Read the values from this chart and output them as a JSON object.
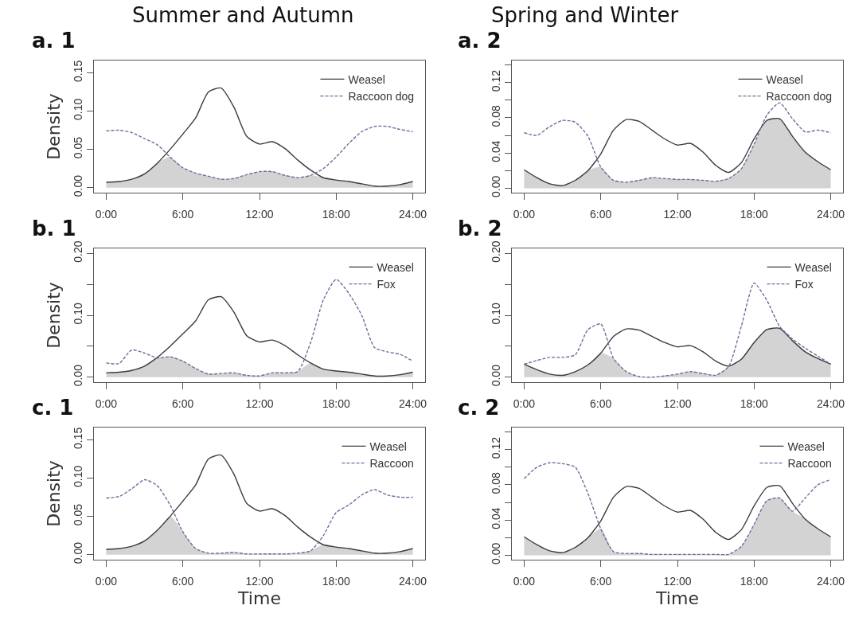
{
  "chart_data": [
    {
      "type": "line",
      "title": "Summer and Autumn",
      "subtitle": "a. 1",
      "ylabel": "Density",
      "x": [
        0,
        1,
        2,
        3,
        4,
        5,
        6,
        7,
        8,
        9,
        10,
        11,
        12,
        13,
        14,
        15,
        16,
        17,
        18,
        19,
        20,
        21,
        22,
        23,
        24
      ],
      "xlim": [
        -0.96,
        24.96
      ],
      "xticks": [
        {
          "value": 0,
          "label": "0:00"
        },
        {
          "value": 6,
          "label": "6:00"
        },
        {
          "value": 12,
          "label": "12:00"
        },
        {
          "value": 18,
          "label": "18:00"
        },
        {
          "value": 24,
          "label": "24:00"
        }
      ],
      "ylim": [
        -0.0065,
        0.166
      ],
      "yticks": [
        {
          "value": 0,
          "label": "0.00"
        },
        {
          "value": 0.05,
          "label": "0.05"
        },
        {
          "value": 0.1,
          "label": "0.10"
        },
        {
          "value": 0.15,
          "label": "0.15"
        }
      ],
      "legend": "top right",
      "series": [
        {
          "type": "area",
          "color": "#d3d3d3",
          "values": [
            0.007,
            0.008,
            0.011,
            0.018,
            0.032,
            0.04,
            0.026,
            0.019,
            0.015,
            0.011,
            0.012,
            0.017,
            0.021,
            0.021,
            0.016,
            0.013,
            0.016,
            0.013,
            0.01,
            0.008,
            0.005,
            0.002,
            0.002,
            0.004,
            0.008
          ]
        },
        {
          "name": "Weasel",
          "color": "#3c3c3c",
          "line_style": "solid",
          "values": [
            0.007,
            0.008,
            0.011,
            0.018,
            0.032,
            0.05,
            0.07,
            0.091,
            0.125,
            0.13,
            0.105,
            0.067,
            0.057,
            0.06,
            0.051,
            0.036,
            0.023,
            0.013,
            0.01,
            0.008,
            0.005,
            0.002,
            0.002,
            0.004,
            0.008
          ]
        },
        {
          "name": "Raccoon dog",
          "color": "#6e6e9e",
          "line_style": "dashed",
          "values": [
            0.074,
            0.075,
            0.072,
            0.064,
            0.056,
            0.04,
            0.026,
            0.019,
            0.015,
            0.011,
            0.012,
            0.017,
            0.021,
            0.021,
            0.016,
            0.013,
            0.016,
            0.025,
            0.04,
            0.058,
            0.073,
            0.08,
            0.08,
            0.076,
            0.073
          ]
        }
      ]
    },
    {
      "type": "line",
      "title": "Spring and Winter",
      "subtitle": "a. 2",
      "x": [
        0,
        1,
        2,
        3,
        4,
        5,
        6,
        7,
        8,
        9,
        10,
        11,
        12,
        13,
        14,
        15,
        16,
        17,
        18,
        19,
        20,
        21,
        22,
        23,
        24
      ],
      "xlim": [
        -0.96,
        24.96
      ],
      "xticks": [
        {
          "value": 0,
          "label": "0:00"
        },
        {
          "value": 6,
          "label": "6:00"
        },
        {
          "value": 12,
          "label": "12:00"
        },
        {
          "value": 18,
          "label": "18:00"
        },
        {
          "value": 24,
          "label": "24:00"
        }
      ],
      "ylim": [
        -0.005,
        0.145
      ],
      "yticks": [
        {
          "value": 0,
          "label": "0.00"
        },
        {
          "value": 0.02,
          "label": null
        },
        {
          "value": 0.04,
          "label": "0.04"
        },
        {
          "value": 0.06,
          "label": null
        },
        {
          "value": 0.08,
          "label": "0.08"
        },
        {
          "value": 0.1,
          "label": null
        },
        {
          "value": 0.12,
          "label": "0.12"
        },
        {
          "value": 0.14,
          "label": null
        }
      ],
      "legend": "top right",
      "series": [
        {
          "type": "area",
          "color": "#d3d3d3",
          "values": [
            0.021,
            0.012,
            0.005,
            0.003,
            0.009,
            0.02,
            0.024,
            0.009,
            0.007,
            0.009,
            0.012,
            0.011,
            0.01,
            0.01,
            0.009,
            0.008,
            0.011,
            0.022,
            0.05,
            0.077,
            0.079,
            0.059,
            0.041,
            0.03,
            0.021
          ]
        },
        {
          "name": "Weasel",
          "color": "#3c3c3c",
          "line_style": "solid",
          "values": [
            0.021,
            0.012,
            0.005,
            0.003,
            0.009,
            0.02,
            0.039,
            0.066,
            0.078,
            0.076,
            0.066,
            0.056,
            0.049,
            0.051,
            0.041,
            0.026,
            0.018,
            0.029,
            0.056,
            0.077,
            0.079,
            0.059,
            0.041,
            0.03,
            0.021
          ]
        },
        {
          "name": "Raccoon dog",
          "color": "#6e6e9e",
          "line_style": "dashed",
          "values": [
            0.063,
            0.06,
            0.07,
            0.077,
            0.075,
            0.059,
            0.024,
            0.009,
            0.007,
            0.009,
            0.012,
            0.011,
            0.01,
            0.01,
            0.009,
            0.008,
            0.011,
            0.022,
            0.05,
            0.083,
            0.097,
            0.079,
            0.064,
            0.066,
            0.063
          ]
        }
      ]
    },
    {
      "type": "line",
      "subtitle": "b. 1",
      "ylabel": "Density",
      "x": [
        0,
        1,
        2,
        3,
        4,
        5,
        6,
        7,
        8,
        9,
        10,
        11,
        12,
        13,
        14,
        15,
        16,
        17,
        18,
        19,
        20,
        21,
        22,
        23,
        24
      ],
      "xlim": [
        -0.96,
        24.96
      ],
      "xticks": [
        {
          "value": 0,
          "label": "0:00"
        },
        {
          "value": 6,
          "label": "6:00"
        },
        {
          "value": 12,
          "label": "12:00"
        },
        {
          "value": 18,
          "label": "18:00"
        },
        {
          "value": 24,
          "label": "24:00"
        }
      ],
      "ylim": [
        -0.008,
        0.208
      ],
      "yticks": [
        {
          "value": 0,
          "label": "0.00"
        },
        {
          "value": 0.05,
          "label": null
        },
        {
          "value": 0.1,
          "label": "0.10"
        },
        {
          "value": 0.15,
          "label": null
        },
        {
          "value": 0.2,
          "label": "0.20"
        }
      ],
      "legend": "top right",
      "series": [
        {
          "type": "area",
          "color": "#d3d3d3",
          "values": [
            0.007,
            0.008,
            0.011,
            0.018,
            0.031,
            0.033,
            0.026,
            0.014,
            0.005,
            0.006,
            0.007,
            0.003,
            0.002,
            0.007,
            0.007,
            0.009,
            0.023,
            0.013,
            0.01,
            0.008,
            0.005,
            0.002,
            0.002,
            0.004,
            0.008
          ]
        },
        {
          "name": "Weasel",
          "color": "#3c3c3c",
          "line_style": "solid",
          "values": [
            0.007,
            0.008,
            0.011,
            0.018,
            0.032,
            0.05,
            0.07,
            0.091,
            0.125,
            0.13,
            0.105,
            0.067,
            0.057,
            0.06,
            0.051,
            0.036,
            0.023,
            0.013,
            0.01,
            0.008,
            0.005,
            0.002,
            0.002,
            0.004,
            0.008
          ]
        },
        {
          "name": "Fox",
          "color": "#6e6e9e",
          "line_style": "dashed",
          "values": [
            0.023,
            0.022,
            0.044,
            0.039,
            0.031,
            0.033,
            0.026,
            0.014,
            0.005,
            0.006,
            0.007,
            0.003,
            0.002,
            0.007,
            0.007,
            0.009,
            0.056,
            0.125,
            0.158,
            0.135,
            0.1,
            0.048,
            0.041,
            0.037,
            0.026
          ]
        }
      ]
    },
    {
      "type": "line",
      "subtitle": "b. 2",
      "x": [
        0,
        1,
        2,
        3,
        4,
        5,
        6,
        7,
        8,
        9,
        10,
        11,
        12,
        13,
        14,
        15,
        16,
        17,
        18,
        19,
        20,
        21,
        22,
        23,
        24
      ],
      "xlim": [
        -0.96,
        24.96
      ],
      "xticks": [
        {
          "value": 0,
          "label": "0:00"
        },
        {
          "value": 6,
          "label": "6:00"
        },
        {
          "value": 12,
          "label": "12:00"
        },
        {
          "value": 18,
          "label": "18:00"
        },
        {
          "value": 24,
          "label": "24:00"
        }
      ],
      "ylim": [
        -0.008,
        0.208
      ],
      "yticks": [
        {
          "value": 0,
          "label": "0.00"
        },
        {
          "value": 0.05,
          "label": null
        },
        {
          "value": 0.1,
          "label": "0.10"
        },
        {
          "value": 0.15,
          "label": null
        },
        {
          "value": 0.2,
          "label": "0.20"
        }
      ],
      "legend": "top right",
      "series": [
        {
          "type": "area",
          "color": "#d3d3d3",
          "values": [
            0.021,
            0.012,
            0.005,
            0.003,
            0.009,
            0.02,
            0.039,
            0.03,
            0.009,
            0.001,
            0,
            0.002,
            0.005,
            0.009,
            0.006,
            0.003,
            0.017,
            0.029,
            0.056,
            0.077,
            0.079,
            0.059,
            0.041,
            0.03,
            0.021
          ]
        },
        {
          "name": "Weasel",
          "color": "#3c3c3c",
          "line_style": "solid",
          "values": [
            0.021,
            0.012,
            0.005,
            0.003,
            0.009,
            0.02,
            0.039,
            0.066,
            0.078,
            0.076,
            0.066,
            0.056,
            0.049,
            0.051,
            0.041,
            0.026,
            0.018,
            0.029,
            0.056,
            0.077,
            0.079,
            0.059,
            0.041,
            0.03,
            0.021
          ]
        },
        {
          "name": "Fox",
          "color": "#6e6e9e",
          "line_style": "dashed",
          "values": [
            0.021,
            0.027,
            0.032,
            0.032,
            0.036,
            0.077,
            0.086,
            0.03,
            0.009,
            0.001,
            0,
            0.002,
            0.005,
            0.009,
            0.006,
            0.003,
            0.017,
            0.082,
            0.152,
            0.124,
            0.082,
            0.062,
            0.047,
            0.034,
            0.021
          ]
        }
      ]
    },
    {
      "type": "line",
      "subtitle": "c. 1",
      "ylabel": "Density",
      "xlabel": "Time",
      "x": [
        0,
        1,
        2,
        3,
        4,
        5,
        6,
        7,
        8,
        9,
        10,
        11,
        12,
        13,
        14,
        15,
        16,
        17,
        18,
        19,
        20,
        21,
        22,
        23,
        24
      ],
      "xlim": [
        -0.96,
        24.96
      ],
      "xticks": [
        {
          "value": 0,
          "label": "0:00"
        },
        {
          "value": 6,
          "label": "6:00"
        },
        {
          "value": 12,
          "label": "12:00"
        },
        {
          "value": 18,
          "label": "18:00"
        },
        {
          "value": 24,
          "label": "24:00"
        }
      ],
      "ylim": [
        -0.0065,
        0.166
      ],
      "yticks": [
        {
          "value": 0,
          "label": "0.00"
        },
        {
          "value": 0.05,
          "label": "0.05"
        },
        {
          "value": 0.1,
          "label": "0.10"
        },
        {
          "value": 0.15,
          "label": "0.15"
        }
      ],
      "legend": "top right",
      "series": [
        {
          "type": "area",
          "color": "#d3d3d3",
          "values": [
            0.007,
            0.008,
            0.011,
            0.018,
            0.032,
            0.05,
            0.03,
            0.008,
            0.002,
            0.002,
            0.003,
            0.001,
            0.001,
            0.001,
            0.001,
            0.002,
            0.005,
            0.013,
            0.01,
            0.008,
            0.005,
            0.002,
            0.002,
            0.004,
            0.008
          ]
        },
        {
          "name": "Weasel",
          "color": "#3c3c3c",
          "line_style": "solid",
          "values": [
            0.007,
            0.008,
            0.011,
            0.018,
            0.032,
            0.05,
            0.07,
            0.091,
            0.125,
            0.13,
            0.105,
            0.067,
            0.057,
            0.06,
            0.051,
            0.036,
            0.023,
            0.013,
            0.01,
            0.008,
            0.005,
            0.002,
            0.002,
            0.004,
            0.008
          ]
        },
        {
          "name": "Raccoon",
          "color": "#6e6e9e",
          "line_style": "dashed",
          "values": [
            0.074,
            0.076,
            0.086,
            0.098,
            0.09,
            0.065,
            0.03,
            0.008,
            0.002,
            0.002,
            0.003,
            0.001,
            0.001,
            0.001,
            0.001,
            0.002,
            0.005,
            0.025,
            0.055,
            0.065,
            0.078,
            0.085,
            0.078,
            0.075,
            0.075
          ]
        }
      ]
    },
    {
      "type": "line",
      "subtitle": "c. 2",
      "xlabel": "Time",
      "x": [
        0,
        1,
        2,
        3,
        4,
        5,
        6,
        7,
        8,
        9,
        10,
        11,
        12,
        13,
        14,
        15,
        16,
        17,
        18,
        19,
        20,
        21,
        22,
        23,
        24
      ],
      "xlim": [
        -0.96,
        24.96
      ],
      "xticks": [
        {
          "value": 0,
          "label": "0:00"
        },
        {
          "value": 6,
          "label": "6:00"
        },
        {
          "value": 12,
          "label": "12:00"
        },
        {
          "value": 18,
          "label": "18:00"
        },
        {
          "value": 24,
          "label": "24:00"
        }
      ],
      "ylim": [
        -0.005,
        0.145
      ],
      "yticks": [
        {
          "value": 0,
          "label": "0.00"
        },
        {
          "value": 0.02,
          "label": null
        },
        {
          "value": 0.04,
          "label": "0.04"
        },
        {
          "value": 0.06,
          "label": null
        },
        {
          "value": 0.08,
          "label": "0.08"
        },
        {
          "value": 0.1,
          "label": null
        },
        {
          "value": 0.12,
          "label": "0.12"
        },
        {
          "value": 0.14,
          "label": null
        }
      ],
      "legend": "top right",
      "series": [
        {
          "type": "area",
          "color": "#d3d3d3",
          "values": [
            0.021,
            0.012,
            0.005,
            0.003,
            0.009,
            0.02,
            0.03,
            0.004,
            0.002,
            0.002,
            0.001,
            0.001,
            0.001,
            0.001,
            0.001,
            0.001,
            0.001,
            0.01,
            0.035,
            0.062,
            0.065,
            0.05,
            0.041,
            0.03,
            0.021
          ]
        },
        {
          "name": "Weasel",
          "color": "#3c3c3c",
          "line_style": "solid",
          "values": [
            0.021,
            0.012,
            0.005,
            0.003,
            0.009,
            0.02,
            0.039,
            0.066,
            0.078,
            0.076,
            0.066,
            0.056,
            0.049,
            0.051,
            0.041,
            0.026,
            0.018,
            0.029,
            0.056,
            0.077,
            0.079,
            0.059,
            0.041,
            0.03,
            0.021
          ]
        },
        {
          "name": "Raccoon",
          "color": "#6e6e9e",
          "line_style": "dashed",
          "values": [
            0.087,
            0.1,
            0.105,
            0.104,
            0.1,
            0.07,
            0.03,
            0.004,
            0.002,
            0.002,
            0.001,
            0.001,
            0.001,
            0.001,
            0.001,
            0.001,
            0.001,
            0.01,
            0.035,
            0.062,
            0.065,
            0.05,
            0.065,
            0.08,
            0.086
          ]
        }
      ]
    }
  ]
}
